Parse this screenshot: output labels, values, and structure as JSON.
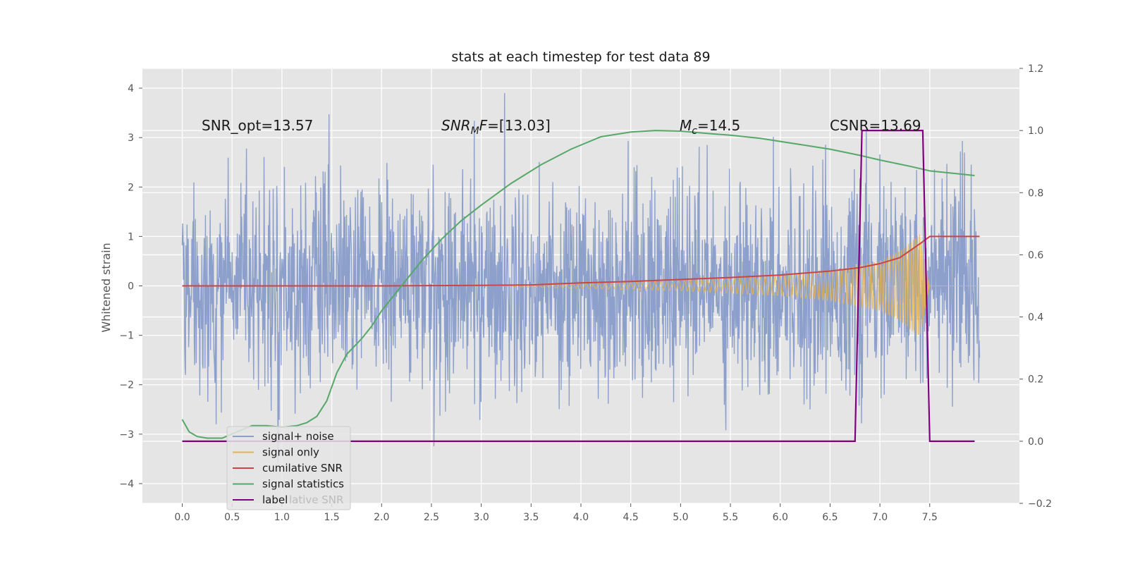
{
  "chart_data": {
    "type": "line",
    "title": "stats at each timestep for test data 89",
    "ylabel": "Whitened strain",
    "y2label": "",
    "xlim": [
      -0.4,
      8.4
    ],
    "ylim": [
      -4.4,
      4.4
    ],
    "y2lim": [
      -0.2,
      1.2
    ],
    "x_ticks": [
      "0.0",
      "0.5",
      "1.0",
      "1.5",
      "2.0",
      "2.5",
      "3.0",
      "3.5",
      "4.0",
      "4.5",
      "5.0",
      "5.5",
      "6.0",
      "6.5",
      "7.0",
      "7.5"
    ],
    "y_ticks": [
      "−4",
      "−3",
      "−2",
      "−1",
      "0",
      "1",
      "2",
      "3",
      "4"
    ],
    "y2_ticks": [
      "−0.2",
      "0.0",
      "0.2",
      "0.4",
      "0.6",
      "0.8",
      "1.0",
      "1.2"
    ],
    "grid": true,
    "legend_position": "lower-left",
    "annotations": {
      "snr_opt": "SNR_opt=13.57",
      "snr_mf_base": "SNR",
      "snr_mf_sub": "M",
      "snr_mf_italic": "F",
      "snr_mf_rest": "=[13.03]",
      "mc_base": "M",
      "mc_sub": "c",
      "mc_rest": "=14.5",
      "csnr": "CSNR=13.69"
    },
    "legend_overlap_text": "lative SNR",
    "series": [
      {
        "name": "signal+ noise",
        "axis": "left",
        "color": "#8da0cb",
        "description_points": "noise band approx amplitude 1.6 with spikes to ~3.9 over x 0 to 8",
        "x": [
          0,
          8.0
        ],
        "amplitude": 1.6
      },
      {
        "name": "signal only",
        "axis": "left",
        "color": "#e6b44f",
        "chirp_x": [
          3.3,
          4.0,
          5.0,
          6.0,
          6.5,
          7.0,
          7.2,
          7.4,
          7.5
        ],
        "chirp_envelope": [
          0.02,
          0.05,
          0.1,
          0.2,
          0.3,
          0.5,
          0.7,
          1.05,
          0.0
        ]
      },
      {
        "name": "cumilative SNR",
        "axis": "left",
        "color": "#cc4444",
        "x": [
          0,
          1.0,
          2.0,
          3.0,
          3.5,
          4.0,
          4.5,
          5.0,
          5.5,
          6.0,
          6.5,
          6.8,
          7.0,
          7.2,
          7.4,
          7.5,
          8.0
        ],
        "y": [
          0,
          0,
          0,
          0.01,
          0.02,
          0.06,
          0.09,
          0.13,
          0.17,
          0.22,
          0.3,
          0.37,
          0.45,
          0.57,
          0.85,
          1.0,
          1.0
        ]
      },
      {
        "name": "signal statistics",
        "axis": "right",
        "color": "#55a868",
        "x": [
          0,
          0.07,
          0.15,
          0.25,
          0.4,
          0.55,
          0.7,
          0.85,
          1.0,
          1.15,
          1.25,
          1.35,
          1.45,
          1.55,
          1.65,
          1.8,
          1.9,
          2.0,
          2.2,
          2.4,
          2.6,
          2.8,
          3.0,
          3.3,
          3.6,
          3.9,
          4.2,
          4.5,
          4.75,
          5.0,
          5.3,
          5.5,
          5.8,
          6.2,
          6.5,
          6.8,
          7.0,
          7.3,
          7.5,
          7.8,
          7.95
        ],
        "y": [
          0.07,
          0.03,
          0.015,
          0.01,
          0.01,
          0.03,
          0.05,
          0.05,
          0.045,
          0.05,
          0.06,
          0.08,
          0.13,
          0.22,
          0.28,
          0.33,
          0.37,
          0.42,
          0.5,
          0.58,
          0.65,
          0.71,
          0.76,
          0.83,
          0.89,
          0.94,
          0.98,
          0.995,
          1.0,
          0.998,
          0.99,
          0.985,
          0.975,
          0.955,
          0.94,
          0.92,
          0.905,
          0.885,
          0.87,
          0.86,
          0.855
        ]
      },
      {
        "name": "label",
        "axis": "right",
        "color": "#800080",
        "x": [
          0,
          6.75,
          6.82,
          7.43,
          7.5,
          7.95
        ],
        "y": [
          0,
          0,
          1.0,
          1.0,
          0,
          0
        ]
      }
    ]
  }
}
